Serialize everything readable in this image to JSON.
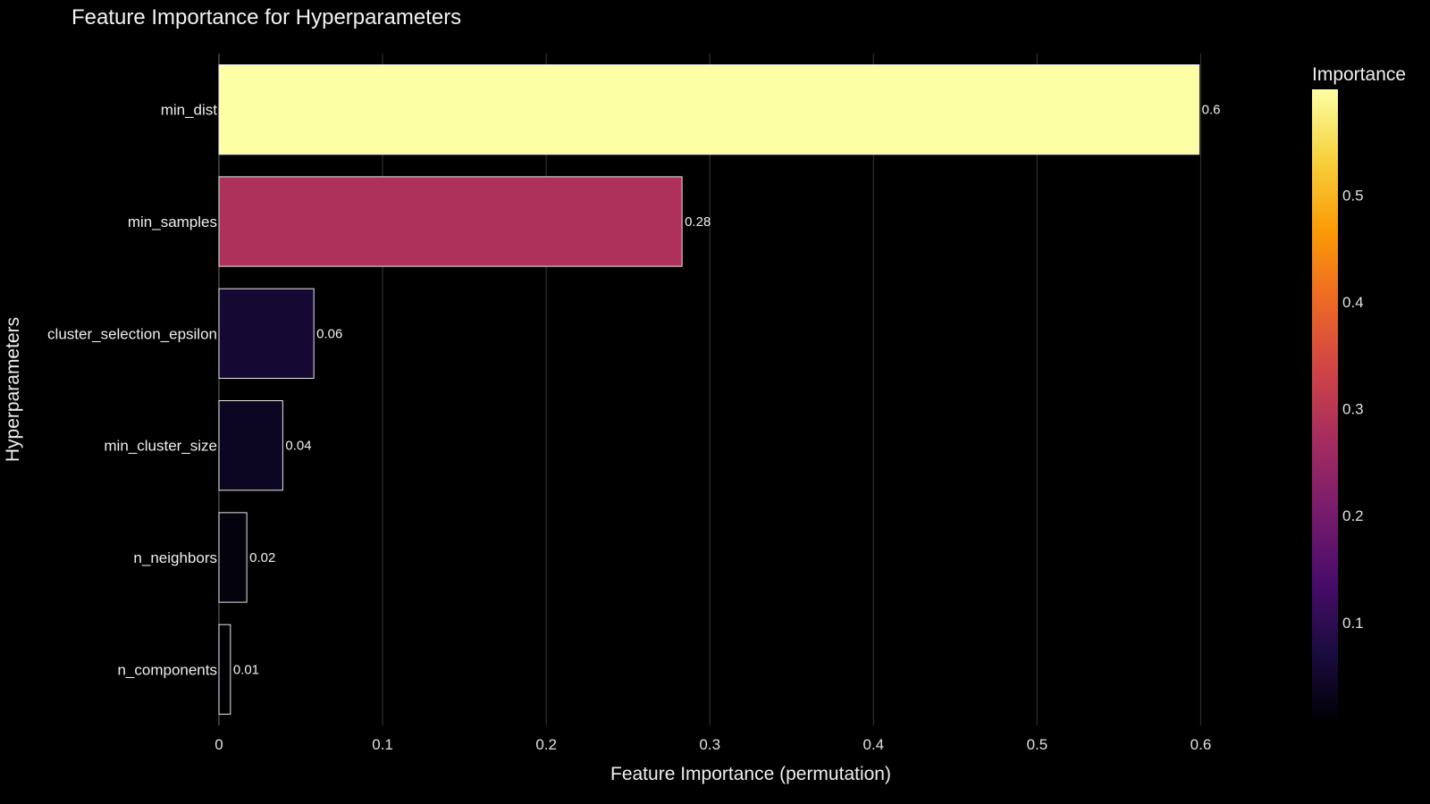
{
  "chart_data": {
    "type": "bar",
    "orientation": "horizontal",
    "title": "Feature Importance for Hyperparameters",
    "xlabel": "Feature Importance (permutation)",
    "ylabel": "Hyperparameters",
    "categories": [
      "min_dist",
      "min_samples",
      "cluster_selection_epsilon",
      "min_cluster_size",
      "n_neighbors",
      "n_components"
    ],
    "values": [
      0.599,
      0.283,
      0.058,
      0.039,
      0.017,
      0.007
    ],
    "data_labels": [
      "0.6",
      "0.28",
      "0.06",
      "0.04",
      "0.02",
      "0.01"
    ],
    "xlim": [
      0,
      0.65
    ],
    "xticks": [
      "0",
      "0.1",
      "0.2",
      "0.3",
      "0.4",
      "0.5",
      "0.6"
    ],
    "grid": "vertical",
    "colorscale": "inferno",
    "colorbar": {
      "title": "Importance",
      "range": [
        0.007,
        0.599
      ],
      "ticks": [
        "0.1",
        "0.2",
        "0.3",
        "0.4",
        "0.5"
      ]
    }
  }
}
